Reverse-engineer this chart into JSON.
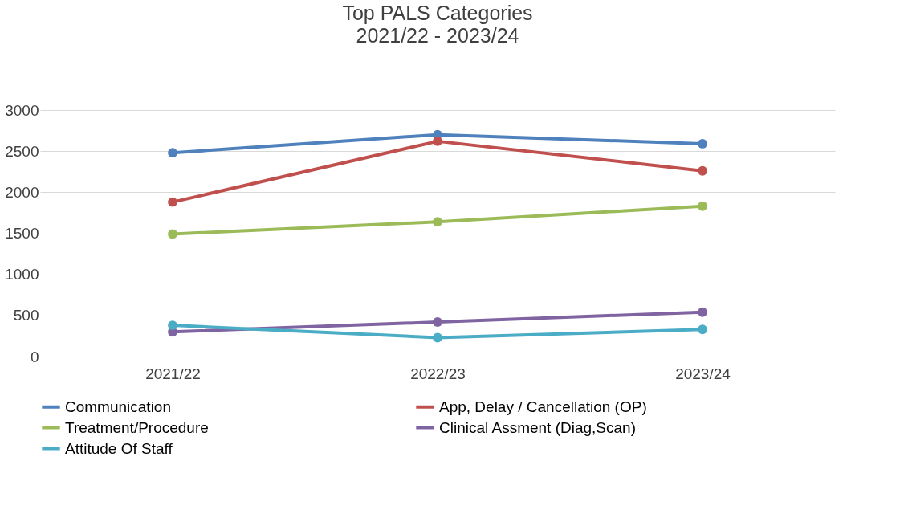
{
  "chart_data": {
    "type": "line",
    "title": "Top PALS Categories",
    "subtitle": "2021/22 - 2023/24",
    "categories": [
      "2021/22",
      "2022/23",
      "2023/24"
    ],
    "series": [
      {
        "name": "Communication",
        "color": "#4f81bd",
        "values": [
          2480,
          2700,
          2590
        ]
      },
      {
        "name": "App, Delay / Cancellation (OP)",
        "color": "#c0504d",
        "values": [
          1880,
          2620,
          2260
        ]
      },
      {
        "name": "Treatment/Procedure",
        "color": "#9bbb59",
        "values": [
          1490,
          1640,
          1830
        ]
      },
      {
        "name": "Clinical Assment (Diag,Scan)",
        "color": "#8064a2",
        "values": [
          300,
          420,
          540
        ]
      },
      {
        "name": "Attitude Of Staff",
        "color": "#4bacc6",
        "values": [
          380,
          230,
          330
        ]
      }
    ],
    "ylim": [
      0,
      3000
    ],
    "yticks": [
      0,
      500,
      1000,
      1500,
      2000,
      2500,
      3000
    ],
    "grid": "y",
    "legend": "bottom",
    "marker": "circle",
    "line_style": "solid"
  }
}
